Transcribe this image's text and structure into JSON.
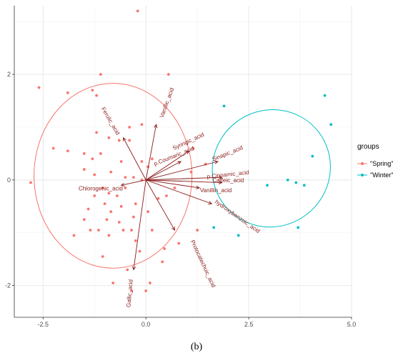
{
  "caption": "(b)",
  "chart_data": {
    "type": "scatter",
    "subtype": "pca-biplot",
    "title": "",
    "xlabel": "",
    "ylabel": "",
    "xlim": [
      -3.2,
      5.0
    ],
    "ylim": [
      -2.6,
      3.3
    ],
    "xticks": [
      -2.5,
      0.0,
      2.5,
      5.0
    ],
    "xtick_labels": [
      "-2.5",
      "0.0",
      "2.5",
      "5.0"
    ],
    "yticks": [
      -2,
      0,
      2
    ],
    "ytick_labels": [
      "-2",
      "0",
      "2"
    ],
    "grid": true,
    "legend": {
      "title": "groups",
      "position": "right",
      "entries": [
        {
          "label": "\"Spring\"",
          "color": "#F8766D"
        },
        {
          "label": "\"Winter\"",
          "color": "#00BFC4"
        }
      ]
    },
    "series": [
      {
        "name": "\"Spring\"",
        "color": "#F8766D",
        "points": [
          [
            -0.2,
            3.2
          ],
          [
            -2.6,
            1.75
          ],
          [
            -1.1,
            2.0
          ],
          [
            -1.9,
            1.65
          ],
          [
            -1.3,
            1.7
          ],
          [
            -1.2,
            1.6
          ],
          [
            0.55,
            2.0
          ],
          [
            -1.2,
            0.9
          ],
          [
            -1.1,
            0.5
          ],
          [
            -0.4,
            0.75
          ],
          [
            -0.1,
            1.05
          ],
          [
            -0.9,
            0.8
          ],
          [
            -0.65,
            0.75
          ],
          [
            -0.4,
            1.0
          ],
          [
            -1.9,
            0.55
          ],
          [
            -2.25,
            0.6
          ],
          [
            -2.8,
            -0.05
          ],
          [
            -1.5,
            0.5
          ],
          [
            -1.3,
            0.4
          ],
          [
            -1.5,
            0.2
          ],
          [
            -1.25,
            0.1
          ],
          [
            -0.85,
            0.15
          ],
          [
            -0.6,
            0.35
          ],
          [
            -0.5,
            0.05
          ],
          [
            -0.3,
            0.05
          ],
          [
            -0.1,
            0.0
          ],
          [
            0.05,
            0.25
          ],
          [
            0.15,
            0.4
          ],
          [
            -0.1,
            0.35
          ],
          [
            -1.25,
            -0.3
          ],
          [
            -1.05,
            -0.15
          ],
          [
            -0.9,
            -0.25
          ],
          [
            -0.7,
            -0.3
          ],
          [
            -0.5,
            -0.15
          ],
          [
            -0.25,
            -0.45
          ],
          [
            -0.6,
            -0.5
          ],
          [
            -1.0,
            -0.45
          ],
          [
            -0.85,
            -0.6
          ],
          [
            -1.4,
            -0.55
          ],
          [
            -1.5,
            -0.75
          ],
          [
            -1.35,
            -0.95
          ],
          [
            -0.95,
            -0.75
          ],
          [
            -0.65,
            -0.8
          ],
          [
            -0.3,
            -0.7
          ],
          [
            0.05,
            -0.6
          ],
          [
            0.3,
            -0.35
          ],
          [
            0.5,
            -0.3
          ],
          [
            0.7,
            -0.15
          ],
          [
            1.1,
            0.15
          ],
          [
            1.15,
            0.6
          ],
          [
            1.45,
            0.3
          ],
          [
            0.15,
            -0.95
          ],
          [
            -0.25,
            -1.15
          ],
          [
            -0.55,
            -0.95
          ],
          [
            -0.9,
            -1.05
          ],
          [
            -1.15,
            -0.95
          ],
          [
            -1.75,
            -1.05
          ],
          [
            -1.05,
            -1.45
          ],
          [
            0.45,
            -1.3
          ],
          [
            0.8,
            -1.2
          ],
          [
            0.4,
            -1.55
          ],
          [
            -0.45,
            -1.7
          ],
          [
            -0.8,
            -1.95
          ],
          [
            0.1,
            -1.95
          ],
          [
            0.0,
            -2.1
          ],
          [
            -0.35,
            -2.1
          ],
          [
            1.25,
            -0.95
          ],
          [
            -0.35,
            -0.95
          ],
          [
            -0.15,
            -1.35
          ]
        ]
      },
      {
        "name": "\"Winter\"",
        "color": "#00BFC4",
        "points": [
          [
            1.9,
            1.4
          ],
          [
            4.35,
            1.6
          ],
          [
            4.5,
            1.05
          ],
          [
            4.05,
            0.45
          ],
          [
            2.95,
            -0.1
          ],
          [
            3.45,
            0.0
          ],
          [
            3.65,
            -0.05
          ],
          [
            3.85,
            -0.1
          ],
          [
            1.65,
            -0.9
          ],
          [
            2.25,
            -1.05
          ],
          [
            3.7,
            -0.9
          ]
        ]
      }
    ],
    "ellipses": [
      {
        "group": "\"Spring\"",
        "cx": -0.8,
        "cy": 0.08,
        "rx": 1.92,
        "ry": 1.75,
        "angle": 0
      },
      {
        "group": "\"Winter\"",
        "cx": 3.05,
        "cy": 0.22,
        "rx": 1.45,
        "ry": 1.1,
        "angle": 38
      }
    ],
    "loadings": [
      {
        "name": "Ferulic_acid",
        "x": -0.55,
        "y": 0.8
      },
      {
        "name": "Vanillic_acid",
        "x": 0.25,
        "y": 1.05
      },
      {
        "name": "Syringic_acid",
        "x": 1.05,
        "y": 0.55
      },
      {
        "name": "p.Coumaric_acid",
        "x": 0.85,
        "y": 0.35
      },
      {
        "name": "Sinapic_acid",
        "x": 1.75,
        "y": 0.35
      },
      {
        "name": "p.Cinnamic_acid",
        "x": 1.85,
        "y": 0.05
      },
      {
        "name": "Caffeic_acid",
        "x": 1.85,
        "y": -0.05
      },
      {
        "name": "Vanillin_acid",
        "x": 1.3,
        "y": -0.15
      },
      {
        "name": "hydroxybenzoic_acid",
        "x": 1.6,
        "y": -0.45
      },
      {
        "name": "Chlorogenic_acid",
        "x": -0.6,
        "y": -0.1
      },
      {
        "name": "Protocatechuic_acid",
        "x": 0.7,
        "y": -0.95
      },
      {
        "name": "Gallic_acid",
        "x": -0.3,
        "y": -1.7
      }
    ],
    "loading_labels": [
      {
        "name": "Ferulic_acid",
        "x": -0.9,
        "y": 1.1,
        "rotate": 60
      },
      {
        "name": "Vanillic_acid",
        "x": 0.55,
        "y": 1.45,
        "rotate": -70
      },
      {
        "name": "Syringic_acid",
        "x": 1.05,
        "y": 0.7,
        "rotate": -25
      },
      {
        "name": "p.Coumaric_acid",
        "x": 0.7,
        "y": 0.42,
        "rotate": -22
      },
      {
        "name": "Sinapic_acid",
        "x": 2.0,
        "y": 0.47,
        "rotate": -22
      },
      {
        "name": "p.Cinnamic_acid",
        "x": 2.0,
        "y": 0.07,
        "rotate": -6
      },
      {
        "name": "Caffeic_acid",
        "x": 2.0,
        "y": -0.04,
        "rotate": 0
      },
      {
        "name": "Vanillin_acid",
        "x": 1.7,
        "y": -0.23,
        "rotate": 0
      },
      {
        "name": "hydroxybenzoic_acid",
        "x": 2.2,
        "y": -0.72,
        "rotate": 35
      },
      {
        "name": "Chlorogenic_acid",
        "x": -1.1,
        "y": -0.2,
        "rotate": 0
      },
      {
        "name": "Protocatechuic_acid",
        "x": 1.35,
        "y": -1.6,
        "rotate": 65
      },
      {
        "name": "Gallic_acid",
        "x": -0.35,
        "y": -2.15,
        "rotate": -85
      }
    ]
  }
}
